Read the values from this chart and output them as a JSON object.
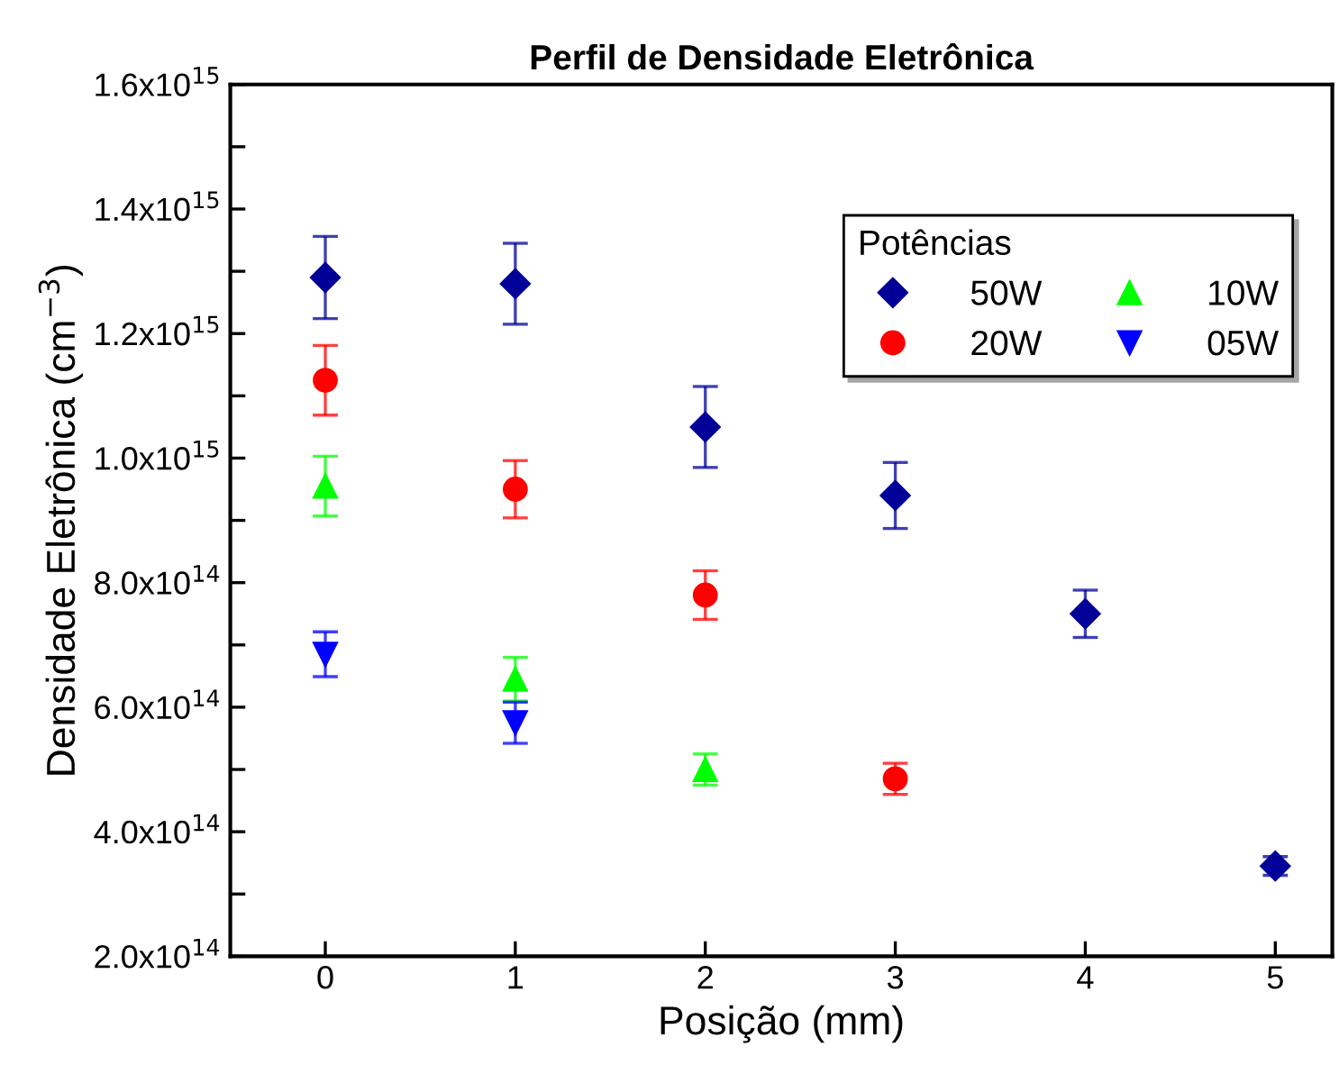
{
  "chart_data": {
    "type": "scatter",
    "title": "Perfil de Densidade Eletrônica",
    "xlabel": "Posição (mm)",
    "ylabel": "Densidade Eletrônica (cm$^{−3}$)",
    "legend_title": "Potências",
    "legend": "top right",
    "grid": false,
    "xlim": [
      -0.5,
      5.3
    ],
    "xticks": [
      0,
      1,
      2,
      3,
      4,
      5
    ],
    "ylim": [
      200000000000000.0,
      1600000000000000.0
    ],
    "yticks": [
      {
        "value": 200000000000000.0,
        "label": "2.0x10$^{14}$"
      },
      {
        "value": 300000000000000.0,
        "label": null
      },
      {
        "value": 400000000000000.0,
        "label": "4.0x10$^{14}$"
      },
      {
        "value": 500000000000000.0,
        "label": null
      },
      {
        "value": 600000000000000.0,
        "label": "6.0x10$^{14}$"
      },
      {
        "value": 700000000000000.0,
        "label": null
      },
      {
        "value": 800000000000000.0,
        "label": "8.0x10$^{14}$"
      },
      {
        "value": 900000000000000.0,
        "label": null
      },
      {
        "value": 1000000000000000.0,
        "label": "1.0x10$^{15}$"
      },
      {
        "value": 1100000000000000.0,
        "label": null
      },
      {
        "value": 1200000000000000.0,
        "label": "1.2x10$^{15}$"
      },
      {
        "value": 1300000000000000.0,
        "label": null
      },
      {
        "value": 1400000000000000.0,
        "label": "1.4x10$^{15}$"
      },
      {
        "value": 1500000000000000.0,
        "label": null
      },
      {
        "value": 1600000000000000.0,
        "label": "1.6x10$^{15}$"
      }
    ],
    "series": [
      {
        "name": "50W",
        "color": "#000099",
        "marker": "diamond",
        "x": [
          0,
          1,
          2,
          3,
          4,
          5
        ],
        "values": [
          1290000000000000.0,
          1280000000000000.0,
          1050000000000000.0,
          940000000000000.0,
          750000000000000.0,
          345000000000000.0
        ],
        "errors": [
          66000000000000.0,
          65000000000000.0,
          65000000000000.0,
          53000000000000.0,
          38000000000000.0,
          15000000000000.0
        ]
      },
      {
        "name": "20W",
        "color": "#ff0000",
        "marker": "circle",
        "x": [
          0,
          1,
          2,
          3
        ],
        "values": [
          1125000000000000.0,
          950000000000000.0,
          780000000000000.0,
          485000000000000.0
        ],
        "errors": [
          56000000000000.0,
          46000000000000.0,
          39000000000000.0,
          25000000000000.0
        ]
      },
      {
        "name": "10W",
        "color": "#00ff00",
        "marker": "triangle",
        "x": [
          0,
          1,
          2
        ],
        "values": [
          955000000000000.0,
          645000000000000.0,
          500000000000000.0
        ],
        "errors": [
          48000000000000.0,
          35000000000000.0,
          25000000000000.0
        ]
      },
      {
        "name": "05W",
        "color": "#0000ff",
        "marker": "triangle_down",
        "x": [
          0,
          1
        ],
        "values": [
          685000000000000.0,
          575000000000000.0
        ],
        "errors": [
          36000000000000.0,
          33000000000000.0
        ]
      }
    ]
  }
}
